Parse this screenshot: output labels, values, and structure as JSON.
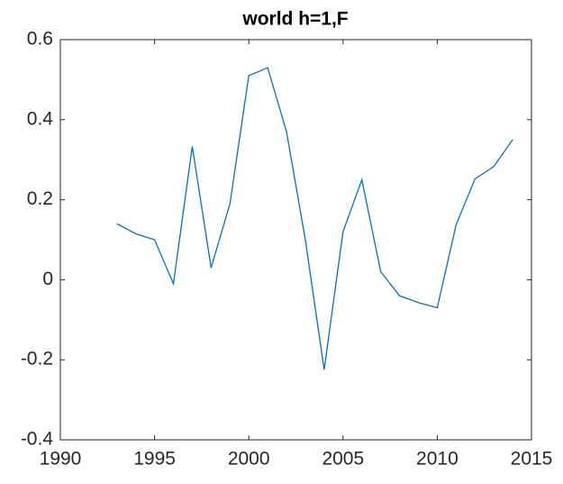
{
  "chart_data": {
    "type": "line",
    "title": "world h=1,F",
    "x": [
      1993,
      1994,
      1995,
      1996,
      1997,
      1998,
      1999,
      2000,
      2001,
      2002,
      2003,
      2004,
      2005,
      2006,
      2007,
      2008,
      2009,
      2010,
      2011,
      2012,
      2013,
      2014
    ],
    "series": [
      {
        "color": "#0072bd",
        "values": [
          0.14,
          0.115,
          0.1,
          -0.01,
          0.333,
          0.03,
          0.19,
          0.51,
          0.53,
          0.37,
          0.1,
          -0.225,
          0.12,
          0.25,
          0.02,
          -0.04,
          -0.057,
          -0.07,
          0.137,
          0.252,
          0.283,
          0.35
        ]
      }
    ],
    "xlim": [
      1990,
      2015
    ],
    "xticks": [
      1990,
      1995,
      2000,
      2005,
      2010,
      2015
    ],
    "ylim": [
      -0.4,
      0.6
    ],
    "yticks": [
      -0.4,
      -0.2,
      0,
      0.2,
      0.4,
      0.6
    ],
    "grid": false
  }
}
